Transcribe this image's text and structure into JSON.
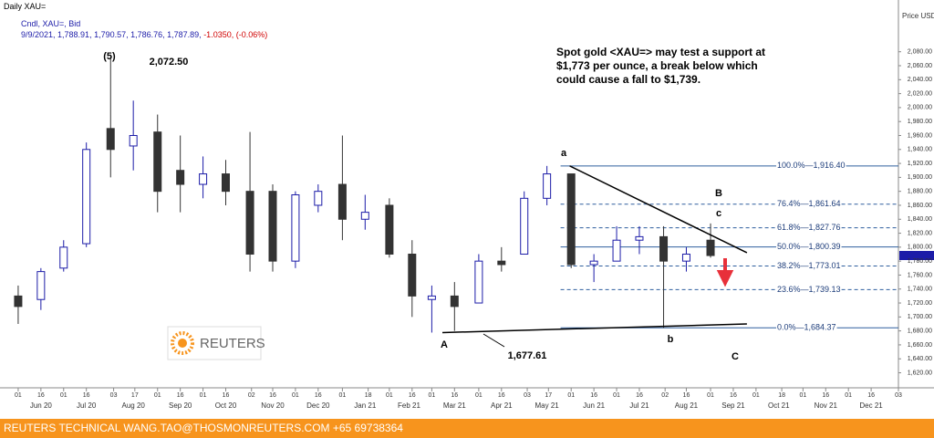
{
  "header": {
    "title": "Daily XAU=",
    "series_line": "Cndl, XAU=, Bid",
    "ohlc_line": "9/9/2021, 1,788.91, 1,790.57, 1,786.76, 1,787.89,",
    "change": "-1.0350, (-0.06%)"
  },
  "note": "Spot gold <XAU=> may test a support at $1,773 per ounce, a break below which could cause a fall to $1,739.",
  "footer": "REUTERS TECHNICAL  WANG.TAO@THOSMONREUTERS.COM  +65 69738364",
  "logo": "REUTERS",
  "chart_data": {
    "type": "ohlc",
    "y_axis_title": "Price USD Ozs",
    "xlim": [
      "2020-05-20",
      "2022-01-03"
    ],
    "ylim": [
      1605,
      2145
    ],
    "up_color": "#1c1ca8",
    "down_color": "#333333",
    "x": [
      "2020-06-01",
      "2020-06-16",
      "2020-07-01",
      "2020-07-16",
      "2020-08-01",
      "2020-08-16",
      "2020-09-01",
      "2020-09-16",
      "2020-10-01",
      "2020-10-16",
      "2020-11-01",
      "2020-11-16",
      "2020-12-01",
      "2020-12-16",
      "2021-01-01",
      "2021-01-16",
      "2021-02-01",
      "2021-02-16",
      "2021-03-01",
      "2021-03-16",
      "2021-04-01",
      "2021-04-16",
      "2021-05-01",
      "2021-05-16",
      "2021-06-01",
      "2021-06-16",
      "2021-07-01",
      "2021-07-16",
      "2021-08-01",
      "2021-08-16",
      "2021-09-01"
    ],
    "open": [
      1730,
      1725,
      1770,
      1805,
      1970,
      1945,
      1965,
      1910,
      1890,
      1905,
      1880,
      1880,
      1780,
      1860,
      1890,
      1840,
      1860,
      1790,
      1725,
      1730,
      1720,
      1780,
      1790,
      1870,
      1905,
      1775,
      1780,
      1810,
      1815,
      1780,
      1810
    ],
    "high": [
      1745,
      1770,
      1810,
      1950,
      2072.5,
      2010,
      1990,
      1960,
      1930,
      1925,
      1965,
      1890,
      1880,
      1890,
      1960,
      1875,
      1870,
      1810,
      1745,
      1750,
      1790,
      1800,
      1880,
      1916.4,
      1905,
      1790,
      1830,
      1830,
      1830,
      1800,
      1834
    ],
    "low": [
      1690,
      1710,
      1765,
      1800,
      1900,
      1910,
      1850,
      1850,
      1870,
      1860,
      1765,
      1765,
      1770,
      1850,
      1810,
      1825,
      1785,
      1700,
      1677.61,
      1680,
      1720,
      1765,
      1790,
      1860,
      1770,
      1750,
      1780,
      1790,
      1684.37,
      1765,
      1785
    ],
    "close": [
      1715,
      1765,
      1800,
      1940,
      1940,
      1960,
      1880,
      1890,
      1905,
      1880,
      1790,
      1780,
      1875,
      1880,
      1840,
      1850,
      1790,
      1730,
      1730,
      1715,
      1780,
      1775,
      1870,
      1905,
      1775,
      1780,
      1810,
      1815,
      1780,
      1790,
      1788
    ],
    "yticks": [
      {
        "value": 1620,
        "label": "1,620.00"
      },
      {
        "value": 1640,
        "label": "1,640.00"
      },
      {
        "value": 1660,
        "label": "1,660.00"
      },
      {
        "value": 1680,
        "label": "1,680.00"
      },
      {
        "value": 1700,
        "label": "1,700.00"
      },
      {
        "value": 1720,
        "label": "1,720.00"
      },
      {
        "value": 1740,
        "label": "1,740.00"
      },
      {
        "value": 1760,
        "label": "1,760.00"
      },
      {
        "value": 1780,
        "label": "1,780.00"
      },
      {
        "value": 1800,
        "label": "1,800.00"
      },
      {
        "value": 1820,
        "label": "1,820.00"
      },
      {
        "value": 1840,
        "label": "1,840.00"
      },
      {
        "value": 1860,
        "label": "1,860.00"
      },
      {
        "value": 1880,
        "label": "1,880.00"
      },
      {
        "value": 1900,
        "label": "1,900.00"
      },
      {
        "value": 1920,
        "label": "1,920.00"
      },
      {
        "value": 1940,
        "label": "1,940.00"
      },
      {
        "value": 1960,
        "label": "1,960.00"
      },
      {
        "value": 1980,
        "label": "1,980.00"
      },
      {
        "value": 2000,
        "label": "2,000.00"
      },
      {
        "value": 2020,
        "label": "2,020.00"
      },
      {
        "value": 2040,
        "label": "2,040.00"
      },
      {
        "value": 2060,
        "label": "2,060.00"
      },
      {
        "value": 2080,
        "label": "2,080.00"
      }
    ],
    "xticks": [
      {
        "value": "2020-06-01",
        "label": "01"
      },
      {
        "value": "2020-06-16",
        "label": "16"
      },
      {
        "value": "2020-07-01",
        "label": "01"
      },
      {
        "value": "2020-07-16",
        "label": "16"
      },
      {
        "value": "2020-08-03",
        "label": "03"
      },
      {
        "value": "2020-08-17",
        "label": "17"
      },
      {
        "value": "2020-09-01",
        "label": "01"
      },
      {
        "value": "2020-09-16",
        "label": "16"
      },
      {
        "value": "2020-10-01",
        "label": "01"
      },
      {
        "value": "2020-10-16",
        "label": "16"
      },
      {
        "value": "2020-11-02",
        "label": "02"
      },
      {
        "value": "2020-11-16",
        "label": "16"
      },
      {
        "value": "2020-12-01",
        "label": "01"
      },
      {
        "value": "2020-12-16",
        "label": "16"
      },
      {
        "value": "2021-01-01",
        "label": "01"
      },
      {
        "value": "2021-01-18",
        "label": "18"
      },
      {
        "value": "2021-02-01",
        "label": "01"
      },
      {
        "value": "2021-02-16",
        "label": "16"
      },
      {
        "value": "2021-03-01",
        "label": "01"
      },
      {
        "value": "2021-03-16",
        "label": "16"
      },
      {
        "value": "2021-04-01",
        "label": "01"
      },
      {
        "value": "2021-04-16",
        "label": "16"
      },
      {
        "value": "2021-05-03",
        "label": "03"
      },
      {
        "value": "2021-05-17",
        "label": "17"
      },
      {
        "value": "2021-06-01",
        "label": "01"
      },
      {
        "value": "2021-06-16",
        "label": "16"
      },
      {
        "value": "2021-07-01",
        "label": "01"
      },
      {
        "value": "2021-07-16",
        "label": "16"
      },
      {
        "value": "2021-08-02",
        "label": "02"
      },
      {
        "value": "2021-08-16",
        "label": "16"
      },
      {
        "value": "2021-09-01",
        "label": "01"
      },
      {
        "value": "2021-09-16",
        "label": "16"
      },
      {
        "value": "2021-10-01",
        "label": "01"
      },
      {
        "value": "2021-10-18",
        "label": "18"
      },
      {
        "value": "2021-11-01",
        "label": "01"
      },
      {
        "value": "2021-11-16",
        "label": "16"
      },
      {
        "value": "2021-12-01",
        "label": "01"
      },
      {
        "value": "2021-12-16",
        "label": "16"
      },
      {
        "value": "2022-01-03",
        "label": "03"
      }
    ],
    "month_labels": [
      {
        "value": "2020-06-16",
        "label": "Jun 20"
      },
      {
        "value": "2020-07-16",
        "label": "Jul 20"
      },
      {
        "value": "2020-08-16",
        "label": "Aug 20"
      },
      {
        "value": "2020-09-16",
        "label": "Sep 20"
      },
      {
        "value": "2020-10-16",
        "label": "Oct 20"
      },
      {
        "value": "2020-11-16",
        "label": "Nov 20"
      },
      {
        "value": "2020-12-16",
        "label": "Dec 20"
      },
      {
        "value": "2021-01-16",
        "label": "Jan 21"
      },
      {
        "value": "2021-02-14",
        "label": "Feb 21"
      },
      {
        "value": "2021-03-16",
        "label": "Mar 21"
      },
      {
        "value": "2021-04-16",
        "label": "Apr 21"
      },
      {
        "value": "2021-05-16",
        "label": "May 21"
      },
      {
        "value": "2021-06-16",
        "label": "Jun 21"
      },
      {
        "value": "2021-07-16",
        "label": "Jul 21"
      },
      {
        "value": "2021-08-16",
        "label": "Aug 21"
      },
      {
        "value": "2021-09-16",
        "label": "Sep 21"
      },
      {
        "value": "2021-10-16",
        "label": "Oct 21"
      },
      {
        "value": "2021-11-16",
        "label": "Nov 21"
      },
      {
        "value": "2021-12-16",
        "label": "Dec 21"
      }
    ],
    "fib_levels": [
      {
        "text": "100.0%—1,916.40",
        "value": 1916.4,
        "dashed": false
      },
      {
        "text": "76.4%—1,861.64",
        "value": 1861.64,
        "dashed": true
      },
      {
        "text": "61.8%—1,827.76",
        "value": 1827.76,
        "dashed": true
      },
      {
        "text": "50.0%—1,800.39",
        "value": 1800.39,
        "dashed": false
      },
      {
        "text": "38.2%—1,773.01",
        "value": 1773.01,
        "dashed": true
      },
      {
        "text": "23.6%—1,739.13",
        "value": 1739.13,
        "dashed": true
      },
      {
        "text": "0.0%—1,684.37",
        "value": 1684.37,
        "dashed": false
      }
    ],
    "fib_start": "2021-05-25",
    "trendlines": [
      {
        "x": [
          "2021-05-31",
          "2021-09-25"
        ],
        "y": [
          1916.4,
          1792
        ]
      },
      {
        "x": [
          "2021-03-08",
          "2021-09-25"
        ],
        "y": [
          1677.61,
          1690
        ]
      }
    ],
    "annotations": [
      "(5)",
      "2,072.50",
      "a",
      "A",
      "B",
      "c",
      "b",
      "C",
      "1,677.61"
    ]
  }
}
